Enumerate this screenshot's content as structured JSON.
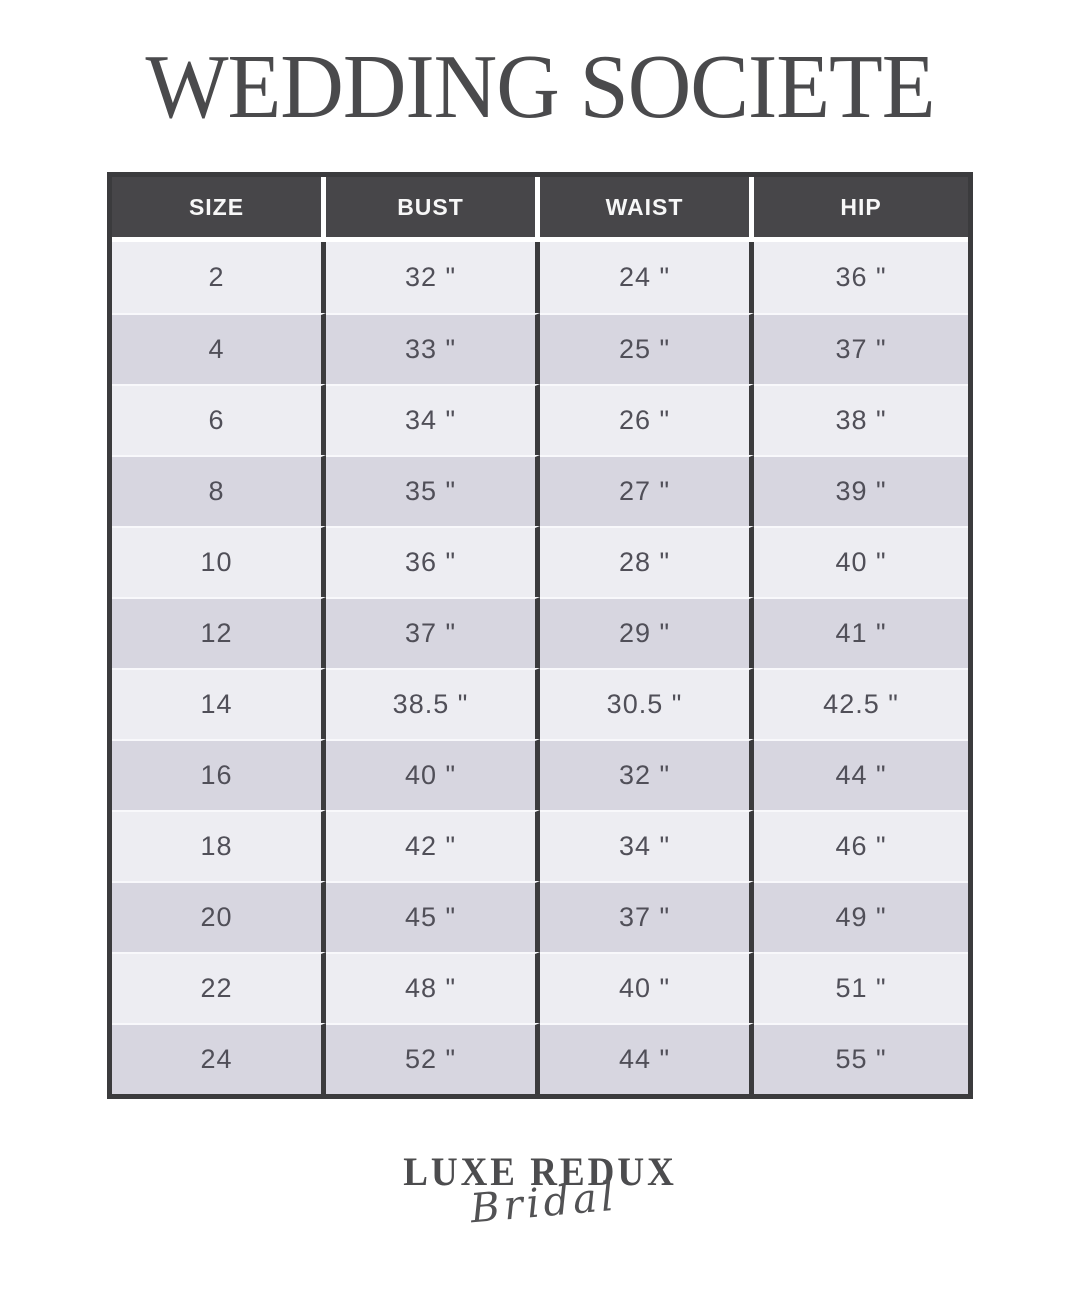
{
  "title": "WEDDING SOCIETE",
  "table": {
    "columns": [
      "SIZE",
      "BUST",
      "WAIST",
      "HIP"
    ],
    "rows": [
      {
        "size": "2",
        "bust": "32 \"",
        "waist": "24 \"",
        "hip": "36 \""
      },
      {
        "size": "4",
        "bust": "33 \"",
        "waist": "25 \"",
        "hip": "37 \""
      },
      {
        "size": "6",
        "bust": "34 \"",
        "waist": "26 \"",
        "hip": "38 \""
      },
      {
        "size": "8",
        "bust": "35 \"",
        "waist": "27 \"",
        "hip": "39 \""
      },
      {
        "size": "10",
        "bust": "36 \"",
        "waist": "28 \"",
        "hip": "40 \""
      },
      {
        "size": "12",
        "bust": "37 \"",
        "waist": "29 \"",
        "hip": "41 \""
      },
      {
        "size": "14",
        "bust": "38.5 \"",
        "waist": "30.5 \"",
        "hip": "42.5 \""
      },
      {
        "size": "16",
        "bust": "40 \"",
        "waist": "32 \"",
        "hip": "44 \""
      },
      {
        "size": "18",
        "bust": "42 \"",
        "waist": "34 \"",
        "hip": "46 \""
      },
      {
        "size": "20",
        "bust": "45 \"",
        "waist": "37 \"",
        "hip": "49 \""
      },
      {
        "size": "22",
        "bust": "48 \"",
        "waist": "40 \"",
        "hip": "51 \""
      },
      {
        "size": "24",
        "bust": "52 \"",
        "waist": "44 \"",
        "hip": "55 \""
      }
    ]
  },
  "logo": {
    "line1": "LUXE REDUX",
    "line2": "Bridal"
  },
  "colors": {
    "header_bg": "#474649",
    "row_light": "#ededf2",
    "row_dark": "#d7d6e0",
    "border": "#3b3b3d",
    "cell_text": "#504f58",
    "title_text": "#4a4a4c",
    "page_bg": "#ffffff"
  }
}
